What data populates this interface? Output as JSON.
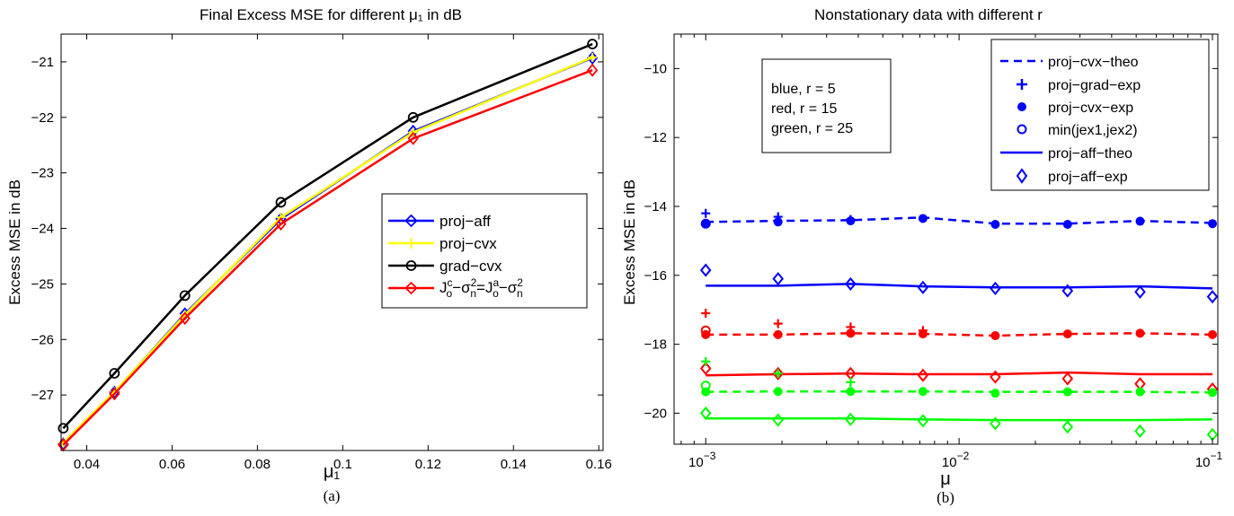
{
  "chart_data": [
    {
      "type": "line",
      "title": "Final Excess MSE for different μ₁ in dB",
      "xlabel": "μ₁",
      "ylabel": "Excess MSE in dB",
      "caption": "(a)",
      "xlim": [
        0.034,
        0.161
      ],
      "ylim": [
        -28.0,
        -20.5
      ],
      "xticks": [
        "0.04",
        "0.06",
        "0.08",
        "0.1",
        "0.12",
        "0.14",
        "0.16"
      ],
      "yticks": [
        "-21",
        "-22",
        "-23",
        "-24",
        "-25",
        "-26",
        "-27"
      ],
      "x": [
        0.0345,
        0.0465,
        0.063,
        0.0855,
        0.1165,
        0.1585
      ],
      "legend_position": "center-right",
      "series": [
        {
          "name": "proj−aff",
          "color": "#0000ff",
          "marker": "diamond",
          "values": [
            -27.88,
            -26.95,
            -25.54,
            -23.83,
            -22.25,
            -20.93
          ]
        },
        {
          "name": "proj−cvx",
          "color": "#ffff00",
          "marker": "plus",
          "values": [
            -27.86,
            -26.94,
            -25.56,
            -23.8,
            -22.27,
            -20.92
          ]
        },
        {
          "name": "grad−cvx",
          "color": "#000000",
          "marker": "circle",
          "values": [
            -27.6,
            -26.61,
            -25.21,
            -23.53,
            -22.0,
            -20.68
          ]
        },
        {
          "name": "J_o^c−σ_n^2=J_o^a−σ_n^2",
          "color": "#ff0000",
          "marker": "diamond",
          "values": [
            -27.9,
            -26.98,
            -25.62,
            -23.92,
            -22.38,
            -21.15
          ]
        }
      ],
      "legend_labels": {
        "proj_aff": "proj−aff",
        "proj_cvx": "proj−cvx",
        "grad_cvx": "grad−cvx",
        "red_j": "J",
        "red_o": "o",
        "red_c": "c",
        "red_a": "a",
        "red_minus": "−",
        "red_eq": "=",
        "red_sigma": "σ",
        "red_n": "n",
        "red_2": "2"
      }
    },
    {
      "type": "line",
      "title": "Nonstationary data with different r",
      "xlabel": "μ",
      "ylabel": "Excess MSE in dB",
      "caption": "(b)",
      "xscale": "log",
      "xlim": [
        0.00075,
        0.105
      ],
      "ylim": [
        -20.9,
        -9.0
      ],
      "xticks": [
        0.001,
        0.01,
        0.1
      ],
      "xtick_labels": {
        "base": "10",
        "exps": [
          "−3",
          "−2",
          "−1"
        ]
      },
      "yticks": [
        "-10",
        "-12",
        "-14",
        "-16",
        "-18",
        "-20"
      ],
      "x": [
        0.001,
        0.00193,
        0.00373,
        0.0072,
        0.0139,
        0.0268,
        0.0518,
        0.1
      ],
      "annotation_lines": [
        "blue, r = 5",
        "red, r = 15",
        "green, r = 25"
      ],
      "legend_position": "top-right",
      "legend_entries": [
        "proj−cvx−theo",
        "proj−grad−exp",
        "proj−cvx−exp",
        "min(jex1,jex2)",
        "proj−aff−theo",
        "proj−aff−exp"
      ],
      "groups": [
        {
          "r": 5,
          "color": "#0000ff",
          "proj_cvx_theo": [
            -14.45,
            -14.42,
            -14.4,
            -14.32,
            -14.5,
            -14.5,
            -14.42,
            -14.48
          ],
          "proj_grad_exp": [
            -14.2,
            -14.3,
            -14.38
          ],
          "proj_cvx_exp": [
            -14.5,
            -14.45,
            -14.42,
            -14.35,
            -14.52,
            -14.52,
            -14.43,
            -14.5
          ],
          "min_jex": [
            -14.5
          ],
          "proj_aff_theo": [
            -16.3,
            -16.3,
            -16.25,
            -16.32,
            -16.35,
            -16.35,
            -16.32,
            -16.38
          ],
          "proj_aff_exp": [
            -15.85,
            -16.1,
            -16.25,
            -16.35,
            -16.38,
            -16.45,
            -16.48,
            -16.62
          ]
        },
        {
          "r": 15,
          "color": "#ff0000",
          "proj_cvx_theo": [
            -17.72,
            -17.72,
            -17.68,
            -17.7,
            -17.75,
            -17.7,
            -17.68,
            -17.72
          ],
          "proj_grad_exp": [
            -17.1,
            -17.4,
            -17.5,
            -17.6
          ],
          "proj_cvx_exp": [
            -17.72,
            -17.72,
            -17.68,
            -17.7,
            -17.75,
            -17.7,
            -17.68,
            -17.72
          ],
          "min_jex": [
            -17.6
          ],
          "proj_aff_theo": [
            -18.9,
            -18.87,
            -18.85,
            -18.87,
            -18.87,
            -18.82,
            -18.87,
            -18.87
          ],
          "proj_aff_exp": [
            -18.7,
            -18.85,
            -18.85,
            -18.9,
            -18.95,
            -19.0,
            -19.15,
            -19.3
          ]
        },
        {
          "r": 25,
          "color": "#00ff00",
          "proj_cvx_theo": [
            -19.38,
            -19.37,
            -19.37,
            -19.37,
            -19.38,
            -19.38,
            -19.38,
            -19.4
          ],
          "proj_grad_exp": [
            -18.5,
            -18.85,
            -19.1
          ],
          "proj_cvx_exp": [
            -19.38,
            -19.37,
            -19.37,
            -19.37,
            -19.42,
            -19.38,
            -19.38,
            -19.4
          ],
          "min_jex": [
            -19.2
          ],
          "proj_aff_theo": [
            -20.15,
            -20.15,
            -20.15,
            -20.18,
            -20.2,
            -20.2,
            -20.2,
            -20.18
          ],
          "proj_aff_exp": [
            -20.0,
            -20.2,
            -20.18,
            -20.22,
            -20.3,
            -20.4,
            -20.52,
            -20.62
          ]
        }
      ]
    }
  ]
}
